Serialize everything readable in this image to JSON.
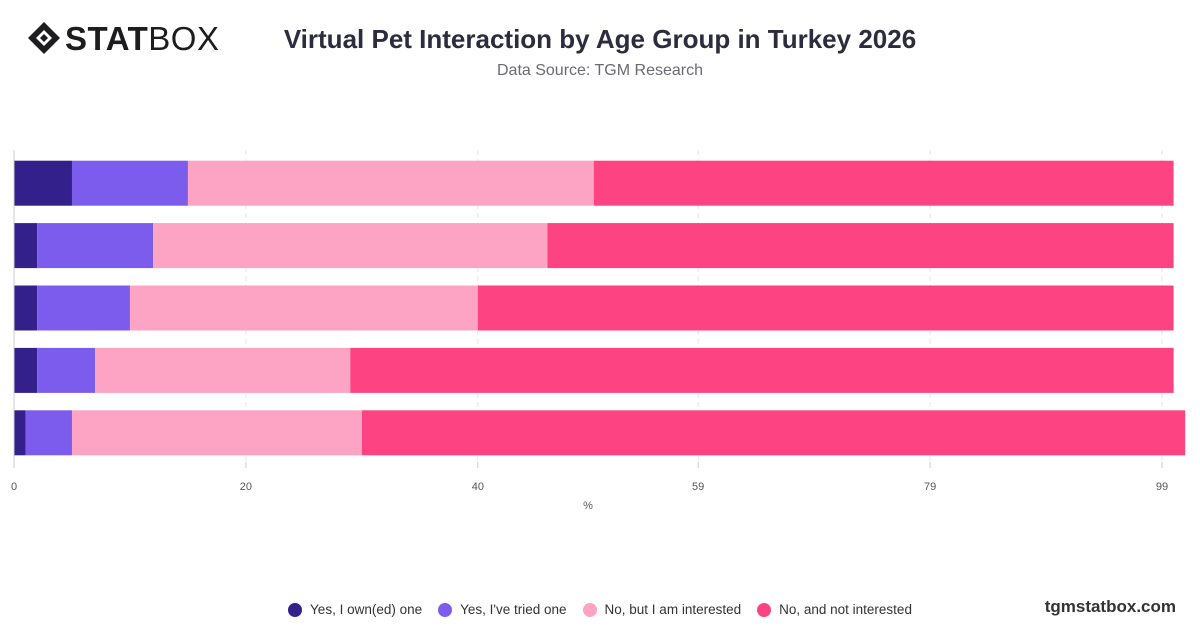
{
  "brand": {
    "logo_bold": "STAT",
    "logo_light": "BOX",
    "site": "tgmstatbox.com"
  },
  "header": {
    "title": "Virtual Pet Interaction by Age Group in Turkey 2026",
    "subtitle": "Data Source: TGM Research"
  },
  "chart_data": {
    "type": "bar",
    "orientation": "horizontal",
    "stacked": true,
    "title": "Virtual Pet Interaction by Age Group in Turkey 2026",
    "subtitle": "Data Source: TGM Research",
    "xlabel": "%",
    "ylabel": "",
    "xlim": [
      0,
      99
    ],
    "x_ticks": [
      "0",
      "20",
      "40",
      "59",
      "79",
      "99"
    ],
    "categories": [
      "",
      "",
      "",
      "",
      ""
    ],
    "grid": true,
    "legend_position": "bottom",
    "series": [
      {
        "name": "Yes, I own(ed) one",
        "color": "#34208a",
        "values": [
          5,
          2,
          2,
          2,
          1
        ]
      },
      {
        "name": "Yes, I've tried one",
        "color": "#7b5ced",
        "values": [
          10,
          10,
          8,
          5,
          4
        ]
      },
      {
        "name": "No, but I am interested",
        "color": "#fda4c4",
        "values": [
          35,
          34,
          30,
          22,
          25
        ]
      },
      {
        "name": "No, and not interested",
        "color": "#fe4383",
        "values": [
          50,
          54,
          60,
          71,
          71
        ]
      }
    ]
  }
}
